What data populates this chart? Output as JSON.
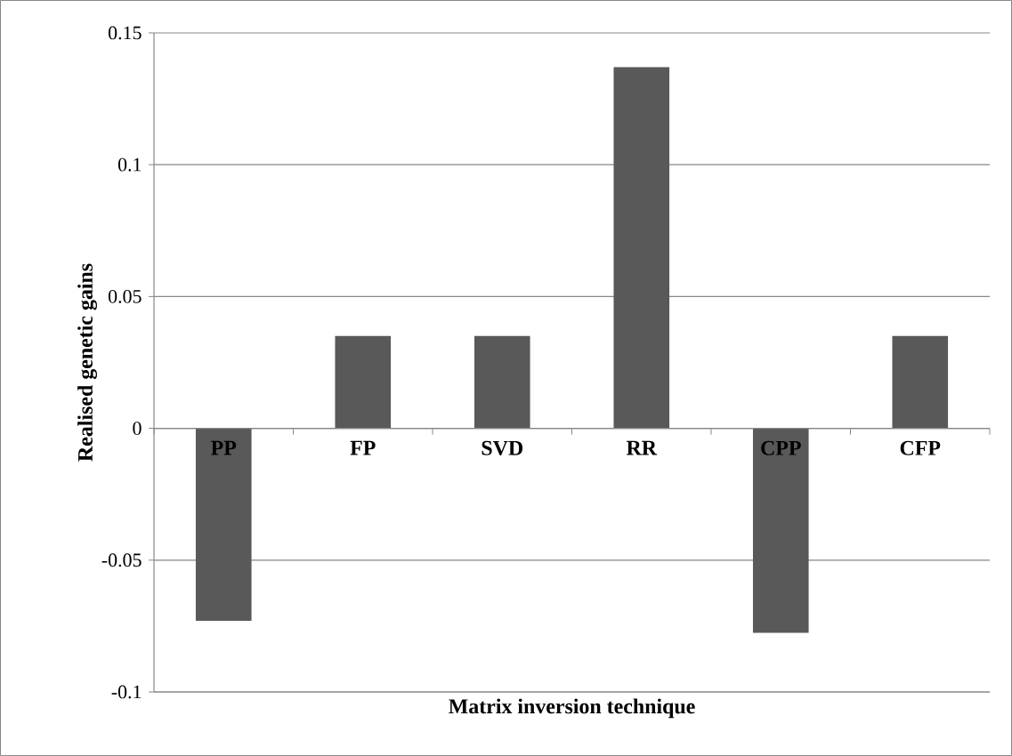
{
  "chart_data": {
    "type": "bar",
    "xlabel": "Matrix inversion technique",
    "ylabel": "Realised genetic gains",
    "categories": [
      "PP",
      "FP",
      "SVD",
      "RR",
      "CPP",
      "CFP"
    ],
    "values": [
      -0.073,
      0.035,
      0.035,
      0.137,
      -0.0776,
      0.035
    ],
    "color": "#595959",
    "ylim": [
      -0.1,
      0.15
    ],
    "yticks": [
      -0.1,
      -0.05,
      0,
      0.05,
      0.1,
      0.15
    ],
    "grid": "y"
  }
}
